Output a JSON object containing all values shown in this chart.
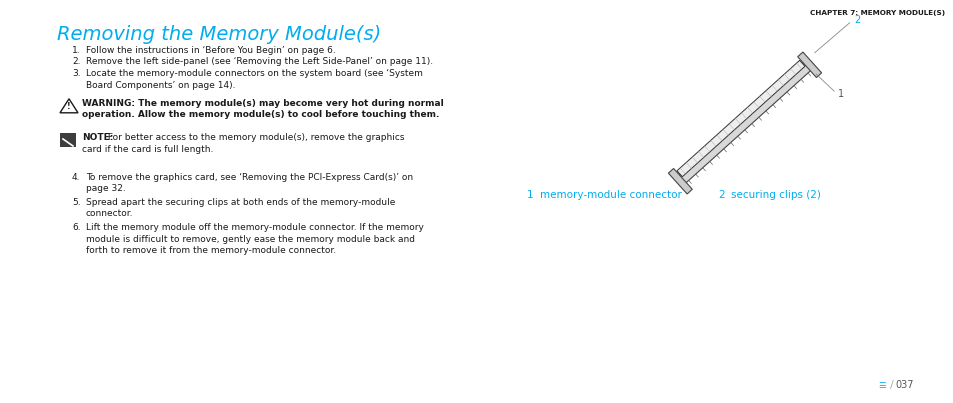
{
  "title": "Removing the Memory Module(s)",
  "chapter_header": "CHAPTER 7: MEMORY MODULE(S)",
  "title_color": "#00adef",
  "text_color": "#1a1a1a",
  "gray_text": "#555555",
  "cyan_color": "#00adef",
  "bg_color": "#ffffff",
  "step1": "Follow the instructions in ‘Before You Begin’ on page 6.",
  "step2": "Remove the left side-panel (see ‘Removing the Left Side-Panel’ on page 11).",
  "step3a": "Locate the memory-module connectors on the system board (see ‘System",
  "step3b": "Board Components’ on page 14).",
  "warning_bold": "WARNING: The memory module(s) may become very hot during normal",
  "warning_bold2": "operation. Allow the memory module(s) to cool before touching them.",
  "note_bold": "NOTE:",
  "note_rest": " For better access to the memory module(s), remove the graphics",
  "note_line2": "card if the card is full length.",
  "step4a": "To remove the graphics card, see ‘Removing the PCI-Express Card(s)’ on",
  "step4b": "page 32.",
  "step5a": "Spread apart the securing clips at both ends of the memory-module",
  "step5b": "connector.",
  "step6a": "Lift the memory module off the memory-module connector. If the memory",
  "step6b": "module is difficult to remove, gently ease the memory module back and",
  "step6c": "forth to remove it from the memory-module connector.",
  "label1_num": "1",
  "label1_text": "memory-module connector",
  "label2_num": "2",
  "label2_text": "securing clips (2)",
  "page_num": "037"
}
